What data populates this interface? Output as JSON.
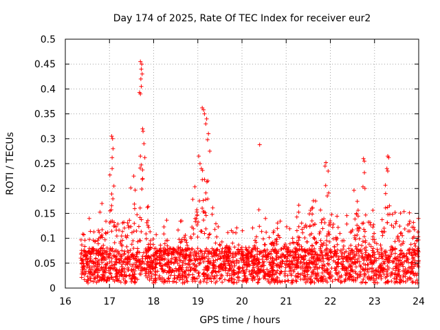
{
  "chart_data": {
    "type": "scatter",
    "title": "Day 174 of 2025, Rate Of TEC Index for receiver eur2",
    "xlabel": "GPS time / hours",
    "ylabel": "ROTI / TECUs",
    "xlim": [
      16,
      24
    ],
    "ylim": [
      0,
      0.5
    ],
    "grid": true,
    "marker": "+",
    "color": "#ff0000",
    "xticks": [
      "16",
      "17",
      "18",
      "19",
      "20",
      "21",
      "22",
      "23",
      "24"
    ],
    "yticks": [
      "0",
      "0.05",
      "0.1",
      "0.15",
      "0.2",
      "0.25",
      "0.3",
      "0.35",
      "0.4",
      "0.45",
      "0.5"
    ],
    "data_start_hour": 16.35,
    "envelope": [
      [
        16.35,
        0.12
      ],
      [
        16.5,
        0.13
      ],
      [
        16.65,
        0.17
      ],
      [
        16.85,
        0.17
      ],
      [
        17.0,
        0.22
      ],
      [
        17.05,
        0.3
      ],
      [
        17.15,
        0.2
      ],
      [
        17.35,
        0.18
      ],
      [
        17.5,
        0.21
      ],
      [
        17.65,
        0.21
      ],
      [
        17.75,
        0.32
      ],
      [
        17.9,
        0.17
      ],
      [
        18.1,
        0.1
      ],
      [
        18.3,
        0.15
      ],
      [
        18.5,
        0.1
      ],
      [
        18.65,
        0.15
      ],
      [
        18.85,
        0.17
      ],
      [
        19.0,
        0.26
      ],
      [
        19.1,
        0.36
      ],
      [
        19.3,
        0.17
      ],
      [
        19.5,
        0.14
      ],
      [
        19.7,
        0.12
      ],
      [
        19.9,
        0.13
      ],
      [
        20.05,
        0.12
      ],
      [
        20.25,
        0.14
      ],
      [
        20.45,
        0.19
      ],
      [
        20.6,
        0.1
      ],
      [
        20.8,
        0.17
      ],
      [
        20.95,
        0.12
      ],
      [
        21.15,
        0.15
      ],
      [
        21.3,
        0.17
      ],
      [
        21.45,
        0.15
      ],
      [
        21.6,
        0.21
      ],
      [
        21.75,
        0.16
      ],
      [
        21.9,
        0.25
      ],
      [
        22.1,
        0.19
      ],
      [
        22.3,
        0.15
      ],
      [
        22.45,
        0.17
      ],
      [
        22.6,
        0.22
      ],
      [
        22.75,
        0.26
      ],
      [
        22.9,
        0.17
      ],
      [
        23.1,
        0.16
      ],
      [
        23.3,
        0.26
      ],
      [
        23.45,
        0.2
      ],
      [
        23.65,
        0.17
      ],
      [
        23.85,
        0.2
      ],
      [
        24.0,
        0.16
      ]
    ],
    "outliers": [
      [
        17.7,
        0.455
      ],
      [
        17.73,
        0.45
      ],
      [
        17.72,
        0.44
      ],
      [
        17.74,
        0.43
      ],
      [
        17.71,
        0.42
      ],
      [
        17.72,
        0.405
      ],
      [
        17.7,
        0.39
      ],
      [
        17.68,
        0.393
      ],
      [
        17.75,
        0.32
      ],
      [
        17.76,
        0.315
      ],
      [
        17.78,
        0.29
      ],
      [
        17.05,
        0.305
      ],
      [
        17.07,
        0.3
      ],
      [
        17.08,
        0.28
      ],
      [
        17.06,
        0.262
      ],
      [
        17.06,
        0.24
      ],
      [
        17.1,
        0.205
      ],
      [
        19.1,
        0.362
      ],
      [
        19.13,
        0.358
      ],
      [
        19.15,
        0.35
      ],
      [
        19.2,
        0.34
      ],
      [
        19.18,
        0.33
      ],
      [
        19.24,
        0.31
      ],
      [
        19.27,
        0.275
      ],
      [
        19.22,
        0.298
      ],
      [
        19.02,
        0.265
      ],
      [
        19.05,
        0.25
      ],
      [
        19.08,
        0.24
      ],
      [
        20.4,
        0.288
      ],
      [
        21.9,
        0.252
      ],
      [
        21.88,
        0.245
      ],
      [
        21.95,
        0.235
      ],
      [
        22.75,
        0.26
      ],
      [
        22.77,
        0.255
      ],
      [
        23.3,
        0.265
      ],
      [
        23.32,
        0.262
      ],
      [
        23.28,
        0.24
      ],
      [
        23.3,
        0.235
      ],
      [
        17.55,
        0.225
      ],
      [
        17.7,
        0.265
      ],
      [
        17.8,
        0.262
      ]
    ]
  }
}
